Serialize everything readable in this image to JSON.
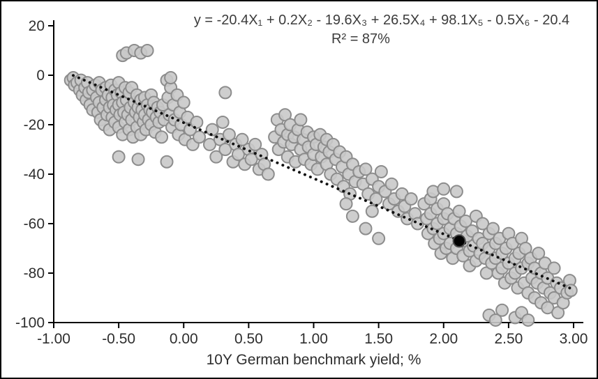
{
  "chart_data": {
    "type": "scatter",
    "annotation_line1": "y = -20.4X₁ + 0.2X₂ - 19.6X₃ + 26.5X₄ + 98.1X₅ - 0.5X₆ - 20.4",
    "annotation_line2": "R² = 87%",
    "r_squared_pct": 87,
    "regression_coefficients": [
      -20.4,
      0.2,
      -19.6,
      26.5,
      98.1,
      -0.5
    ],
    "regression_constant": -20.4,
    "xlabel": "10Y German benchmark yield; %",
    "ylabel": "",
    "xlim": [
      -1,
      3
    ],
    "ylim": [
      -100,
      20
    ],
    "xticks": {
      "values": [
        -1,
        -0.5,
        0,
        0.5,
        1,
        1.5,
        2,
        2.5,
        3
      ],
      "labels": [
        "-1.00",
        "-0.50",
        "0.00",
        "0.50",
        "1.00",
        "1.50",
        "2.00",
        "2.50",
        "3.00"
      ]
    },
    "yticks": {
      "values": [
        20,
        0,
        -20,
        -40,
        -60,
        -80,
        -100
      ],
      "labels": [
        "20",
        "0",
        "-20",
        "-40",
        "-60",
        "-80",
        "-100"
      ]
    },
    "grid": false,
    "legend": "none",
    "trendline": {
      "style": "dotted",
      "color": "#111111",
      "slope": -22.5,
      "intercept": -19.2,
      "x_start": -0.85,
      "x_end": 3.0
    },
    "highlight_point": {
      "x": 2.12,
      "y": -67,
      "color": "#000000"
    },
    "point_style": {
      "fill": "#c9c9c9",
      "stroke": "#8c8c8c",
      "radius": 8.5,
      "opacity": 0.9
    },
    "points": [
      [
        -0.87,
        -2
      ],
      [
        -0.85,
        -1
      ],
      [
        -0.84,
        -4
      ],
      [
        -0.82,
        -3
      ],
      [
        -0.8,
        -6
      ],
      [
        -0.79,
        -2
      ],
      [
        -0.78,
        -8
      ],
      [
        -0.76,
        -5
      ],
      [
        -0.75,
        -10
      ],
      [
        -0.74,
        -3
      ],
      [
        -0.73,
        -7
      ],
      [
        -0.72,
        -12
      ],
      [
        -0.7,
        -6
      ],
      [
        -0.7,
        -14
      ],
      [
        -0.68,
        -4
      ],
      [
        -0.67,
        -9
      ],
      [
        -0.66,
        -15
      ],
      [
        -0.65,
        -3
      ],
      [
        -0.65,
        -11
      ],
      [
        -0.64,
        -18
      ],
      [
        -0.63,
        -6
      ],
      [
        -0.62,
        -13
      ],
      [
        -0.61,
        -20
      ],
      [
        -0.6,
        -5
      ],
      [
        -0.6,
        -10
      ],
      [
        -0.59,
        -16
      ],
      [
        -0.58,
        -8
      ],
      [
        -0.57,
        -13
      ],
      [
        -0.57,
        -22
      ],
      [
        -0.56,
        -4
      ],
      [
        -0.55,
        -9
      ],
      [
        -0.55,
        -17
      ],
      [
        -0.54,
        -12
      ],
      [
        -0.53,
        -6
      ],
      [
        -0.53,
        -19
      ],
      [
        -0.52,
        -14
      ],
      [
        -0.51,
        -8
      ],
      [
        -0.5,
        -3
      ],
      [
        -0.5,
        -12
      ],
      [
        -0.5,
        -21
      ],
      [
        -0.49,
        -16
      ],
      [
        -0.48,
        -7
      ],
      [
        -0.47,
        -11
      ],
      [
        -0.47,
        -24
      ],
      [
        -0.46,
        -15
      ],
      [
        -0.45,
        -5
      ],
      [
        -0.45,
        -19
      ],
      [
        -0.47,
        8
      ],
      [
        -0.44,
        9
      ],
      [
        -0.38,
        10
      ],
      [
        -0.33,
        9
      ],
      [
        -0.28,
        10
      ],
      [
        -0.44,
        -10
      ],
      [
        -0.43,
        -16
      ],
      [
        -0.42,
        -7
      ],
      [
        -0.42,
        -22
      ],
      [
        -0.41,
        -13
      ],
      [
        -0.4,
        -5
      ],
      [
        -0.4,
        -18
      ],
      [
        -0.39,
        -25
      ],
      [
        -0.38,
        -11
      ],
      [
        -0.37,
        -15
      ],
      [
        -0.36,
        -8
      ],
      [
        -0.36,
        -21
      ],
      [
        -0.35,
        -13
      ],
      [
        -0.34,
        -17
      ],
      [
        -0.33,
        -10
      ],
      [
        -0.33,
        -24
      ],
      [
        -0.32,
        -14
      ],
      [
        -0.31,
        -19
      ],
      [
        -0.3,
        -9
      ],
      [
        -0.3,
        -16
      ],
      [
        -0.29,
        -22
      ],
      [
        -0.28,
        -12
      ],
      [
        -0.27,
        -18
      ],
      [
        -0.26,
        -14
      ],
      [
        -0.25,
        -8
      ],
      [
        -0.25,
        -20
      ],
      [
        -0.24,
        -15
      ],
      [
        -0.23,
        -11
      ],
      [
        -0.22,
        -23
      ],
      [
        -0.21,
        -17
      ],
      [
        -0.2,
        -13
      ],
      [
        -0.19,
        -19
      ],
      [
        -0.18,
        -15
      ],
      [
        -0.17,
        -25
      ],
      [
        -0.16,
        -12
      ],
      [
        -0.15,
        -18
      ],
      [
        -0.5,
        -33
      ],
      [
        -0.35,
        -34
      ],
      [
        -0.13,
        -35
      ],
      [
        -0.13,
        -2
      ],
      [
        -0.12,
        -9
      ],
      [
        -0.11,
        -16
      ],
      [
        -0.1,
        -5
      ],
      [
        -0.09,
        -21
      ],
      [
        -0.08,
        -12
      ],
      [
        -0.07,
        -18
      ],
      [
        -0.05,
        -8
      ],
      [
        -0.04,
        -24
      ],
      [
        -0.03,
        -15
      ],
      [
        -0.02,
        -20
      ],
      [
        0.0,
        -11
      ],
      [
        0.01,
        -26
      ],
      [
        0.03,
        -17
      ],
      [
        0.05,
        -22
      ],
      [
        0.07,
        -28
      ],
      [
        0.1,
        -19
      ],
      [
        0.12,
        -25
      ],
      [
        -0.1,
        -1
      ],
      [
        0.32,
        -7
      ],
      [
        0.2,
        -28
      ],
      [
        0.22,
        -22
      ],
      [
        0.25,
        -33
      ],
      [
        0.28,
        -26
      ],
      [
        0.3,
        -19
      ],
      [
        0.32,
        -30
      ],
      [
        0.35,
        -24
      ],
      [
        0.38,
        -35
      ],
      [
        0.4,
        -28
      ],
      [
        0.42,
        -32
      ],
      [
        0.45,
        -26
      ],
      [
        0.47,
        -36
      ],
      [
        0.5,
        -30
      ],
      [
        0.52,
        -34
      ],
      [
        0.55,
        -28
      ],
      [
        0.58,
        -38
      ],
      [
        0.6,
        -32
      ],
      [
        0.62,
        -36
      ],
      [
        0.65,
        -40
      ],
      [
        0.7,
        -25
      ],
      [
        0.72,
        -18
      ],
      [
        0.73,
        -30
      ],
      [
        0.75,
        -22
      ],
      [
        0.77,
        -27
      ],
      [
        0.78,
        -16
      ],
      [
        0.8,
        -24
      ],
      [
        0.8,
        -33
      ],
      [
        0.82,
        -20
      ],
      [
        0.83,
        -28
      ],
      [
        0.85,
        -25
      ],
      [
        0.86,
        -35
      ],
      [
        0.88,
        -22
      ],
      [
        0.9,
        -30
      ],
      [
        0.9,
        -18
      ],
      [
        0.92,
        -26
      ],
      [
        0.93,
        -34
      ],
      [
        0.95,
        -23
      ],
      [
        0.96,
        -29
      ],
      [
        0.98,
        -36
      ],
      [
        1.0,
        -25
      ],
      [
        1.0,
        -32
      ],
      [
        1.02,
        -28
      ],
      [
        1.03,
        -38
      ],
      [
        1.05,
        -24
      ],
      [
        1.06,
        -33
      ],
      [
        1.08,
        -29
      ],
      [
        1.1,
        -36
      ],
      [
        1.1,
        -26
      ],
      [
        1.12,
        -31
      ],
      [
        1.13,
        -40
      ],
      [
        1.15,
        -28
      ],
      [
        1.17,
        -34
      ],
      [
        1.18,
        -42
      ],
      [
        1.2,
        -31
      ],
      [
        1.22,
        -37
      ],
      [
        1.23,
        -45
      ],
      [
        1.25,
        -33
      ],
      [
        1.27,
        -40
      ],
      [
        1.28,
        -48
      ],
      [
        1.3,
        -36
      ],
      [
        1.32,
        -43
      ],
      [
        1.35,
        -39
      ],
      [
        1.25,
        -52
      ],
      [
        1.3,
        -57
      ],
      [
        1.4,
        -62
      ],
      [
        1.45,
        -55
      ],
      [
        1.5,
        -66
      ],
      [
        1.38,
        -44
      ],
      [
        1.4,
        -38
      ],
      [
        1.42,
        -48
      ],
      [
        1.45,
        -42
      ],
      [
        1.48,
        -50
      ],
      [
        1.5,
        -45
      ],
      [
        1.52,
        -39
      ],
      [
        1.55,
        -47
      ],
      [
        1.58,
        -52
      ],
      [
        1.6,
        -44
      ],
      [
        1.62,
        -50
      ],
      [
        1.65,
        -55
      ],
      [
        1.68,
        -48
      ],
      [
        1.7,
        -53
      ],
      [
        1.72,
        -58
      ],
      [
        1.75,
        -50
      ],
      [
        1.78,
        -56
      ],
      [
        1.8,
        -60
      ],
      [
        1.85,
        -52
      ],
      [
        1.87,
        -58
      ],
      [
        1.88,
        -64
      ],
      [
        1.9,
        -50
      ],
      [
        1.9,
        -56
      ],
      [
        1.92,
        -62
      ],
      [
        1.93,
        -68
      ],
      [
        1.95,
        -54
      ],
      [
        1.95,
        -60
      ],
      [
        1.97,
        -66
      ],
      [
        1.98,
        -72
      ],
      [
        2.0,
        -52
      ],
      [
        2.0,
        -58
      ],
      [
        2.0,
        -64
      ],
      [
        2.02,
        -70
      ],
      [
        2.03,
        -56
      ],
      [
        2.05,
        -62
      ],
      [
        2.05,
        -68
      ],
      [
        2.07,
        -74
      ],
      [
        2.08,
        -58
      ],
      [
        2.1,
        -64
      ],
      [
        2.1,
        -70
      ],
      [
        2.12,
        -55
      ],
      [
        2.13,
        -61
      ],
      [
        2.15,
        -67
      ],
      [
        2.15,
        -73
      ],
      [
        2.17,
        -59
      ],
      [
        2.18,
        -65
      ],
      [
        2.2,
        -71
      ],
      [
        2.2,
        -77
      ],
      [
        2.22,
        -63
      ],
      [
        2.23,
        -69
      ],
      [
        2.25,
        -57
      ],
      [
        2.25,
        -75
      ],
      [
        2.27,
        -66
      ],
      [
        2.28,
        -72
      ],
      [
        2.3,
        -60
      ],
      [
        2.3,
        -68
      ],
      [
        2.32,
        -74
      ],
      [
        2.33,
        -80
      ],
      [
        2.35,
        -64
      ],
      [
        2.35,
        -70
      ],
      [
        2.37,
        -76
      ],
      [
        2.38,
        -62
      ],
      [
        2.4,
        -68
      ],
      [
        2.4,
        -74
      ],
      [
        2.42,
        -80
      ],
      [
        2.43,
        -66
      ],
      [
        2.45,
        -72
      ],
      [
        2.45,
        -78
      ],
      [
        2.47,
        -84
      ],
      [
        2.48,
        -70
      ],
      [
        2.5,
        -64
      ],
      [
        2.5,
        -76
      ],
      [
        2.52,
        -82
      ],
      [
        2.53,
        -68
      ],
      [
        2.55,
        -74
      ],
      [
        2.55,
        -80
      ],
      [
        2.57,
        -86
      ],
      [
        2.58,
        -72
      ],
      [
        2.6,
        -78
      ],
      [
        2.6,
        -66
      ],
      [
        2.62,
        -84
      ],
      [
        2.63,
        -70
      ],
      [
        2.65,
        -76
      ],
      [
        2.65,
        -88
      ],
      [
        2.67,
        -74
      ],
      [
        2.68,
        -82
      ],
      [
        2.7,
        -78
      ],
      [
        2.7,
        -90
      ],
      [
        2.72,
        -84
      ],
      [
        2.73,
        -72
      ],
      [
        2.75,
        -80
      ],
      [
        2.75,
        -92
      ],
      [
        2.77,
        -86
      ],
      [
        2.78,
        -76
      ],
      [
        2.8,
        -82
      ],
      [
        2.8,
        -94
      ],
      [
        2.82,
        -88
      ],
      [
        2.85,
        -78
      ],
      [
        2.85,
        -90
      ],
      [
        2.87,
        -84
      ],
      [
        2.88,
        -96
      ],
      [
        2.9,
        -86
      ],
      [
        2.92,
        -92
      ],
      [
        2.95,
        -88
      ],
      [
        2.97,
        -83
      ],
      [
        2.98,
        -87
      ],
      [
        1.92,
        -47
      ],
      [
        2.0,
        -46
      ],
      [
        2.1,
        -47
      ],
      [
        2.35,
        -97
      ],
      [
        2.45,
        -95
      ],
      [
        2.55,
        -98
      ],
      [
        2.6,
        -96
      ],
      [
        2.65,
        -99
      ],
      [
        2.4,
        -99
      ]
    ]
  }
}
